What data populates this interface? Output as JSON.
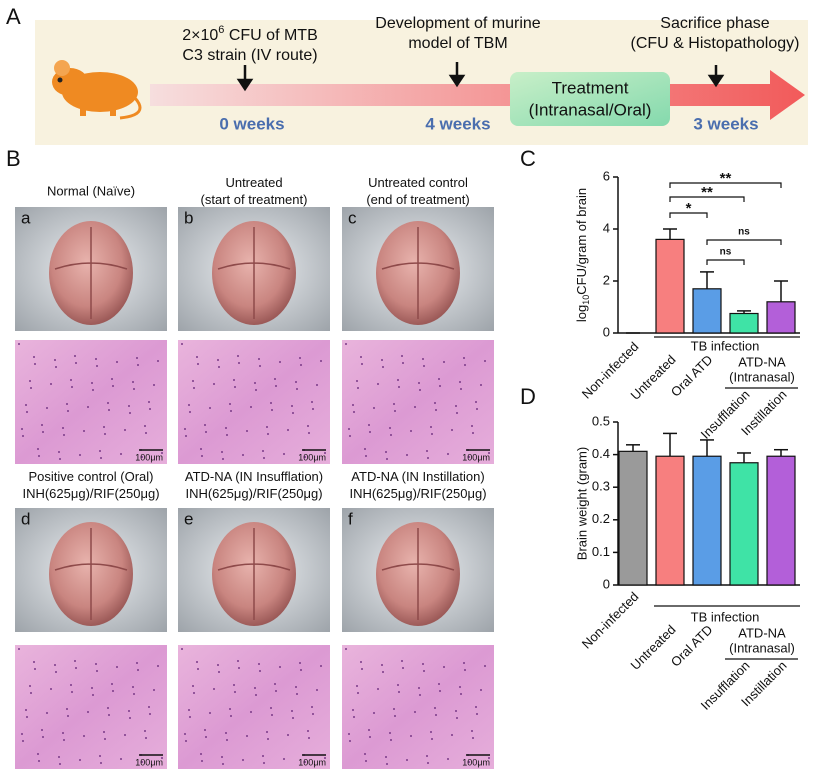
{
  "panel_a": {
    "letter": "A",
    "dose": {
      "base": "2×10",
      "exp": "6",
      "rest": " CFU of MTB"
    },
    "dose_line2": "C3 strain (IV route)",
    "development": [
      "Development of murine",
      "model of TBM"
    ],
    "sacrifice": [
      "Sacrifice phase",
      "(CFU & Histopathology)"
    ],
    "treatment": [
      "Treatment",
      "(Intranasal/Oral)"
    ],
    "weeks": [
      "0 weeks",
      "4 weeks",
      "3 weeks"
    ]
  },
  "panel_b": {
    "letter": "B",
    "groups": [
      {
        "letter": "a",
        "title": [
          "Normal (Naïve)"
        ],
        "scale": "100μm"
      },
      {
        "letter": "b",
        "title": [
          "Untreated",
          "(start of treatment)"
        ],
        "scale": "100μm"
      },
      {
        "letter": "c",
        "title": [
          "Untreated control",
          "(end of treatment)"
        ],
        "scale": "100μm"
      },
      {
        "letter": "d",
        "title": [
          "Positive control (Oral)",
          "INH(625μg)/RIF(250μg)"
        ],
        "scale": "100μm"
      },
      {
        "letter": "e",
        "title": [
          "ATD-NA (IN Insufflation)",
          "INH(625μg)/RIF(250μg)"
        ],
        "scale": "100μm"
      },
      {
        "letter": "f",
        "title": [
          "ATD-NA (IN Instillation)",
          "INH(625μg)/RIF(250μg)"
        ],
        "scale": "100μm"
      }
    ]
  },
  "chart_data": [
    {
      "panel": "C",
      "type": "bar",
      "categories": [
        "Non-infected",
        "Untreated",
        "Oral ATD",
        "Insufflation",
        "Instillation"
      ],
      "values": [
        0,
        3.6,
        1.7,
        0.75,
        1.2
      ],
      "errors": [
        0,
        0.4,
        0.65,
        0.1,
        0.8
      ],
      "colors": [
        "#9a9a9a",
        "#f77f7f",
        "#5a9de6",
        "#3fe3a6",
        "#b35fd9"
      ],
      "ylabel": {
        "pre": "log",
        "sub": "10",
        "post": "CFU/gram of brain"
      },
      "ylim": [
        0,
        6
      ],
      "yticks": [
        0,
        2,
        4,
        6
      ],
      "group_label": "TB infection",
      "subgroup_label": [
        "ATD-NA",
        "(Intranasal)"
      ],
      "significance": [
        "**",
        "**",
        "*",
        "ns",
        "ns"
      ]
    },
    {
      "panel": "D",
      "type": "bar",
      "categories": [
        "Non-infected",
        "Untreated",
        "Oral ATD",
        "Insufflation",
        "Instillation"
      ],
      "values": [
        0.41,
        0.395,
        0.395,
        0.375,
        0.395
      ],
      "errors": [
        0.02,
        0.07,
        0.05,
        0.03,
        0.02
      ],
      "colors": [
        "#9a9a9a",
        "#f77f7f",
        "#5a9de6",
        "#3fe3a6",
        "#b35fd9"
      ],
      "ylabel": "Brain weight (gram)",
      "ylim": [
        0,
        0.5
      ],
      "yticks": [
        0,
        0.1,
        0.2,
        0.3,
        0.4,
        0.5
      ],
      "group_label": "TB infection",
      "subgroup_label": [
        "ATD-NA",
        "(Intranasal)"
      ]
    }
  ]
}
